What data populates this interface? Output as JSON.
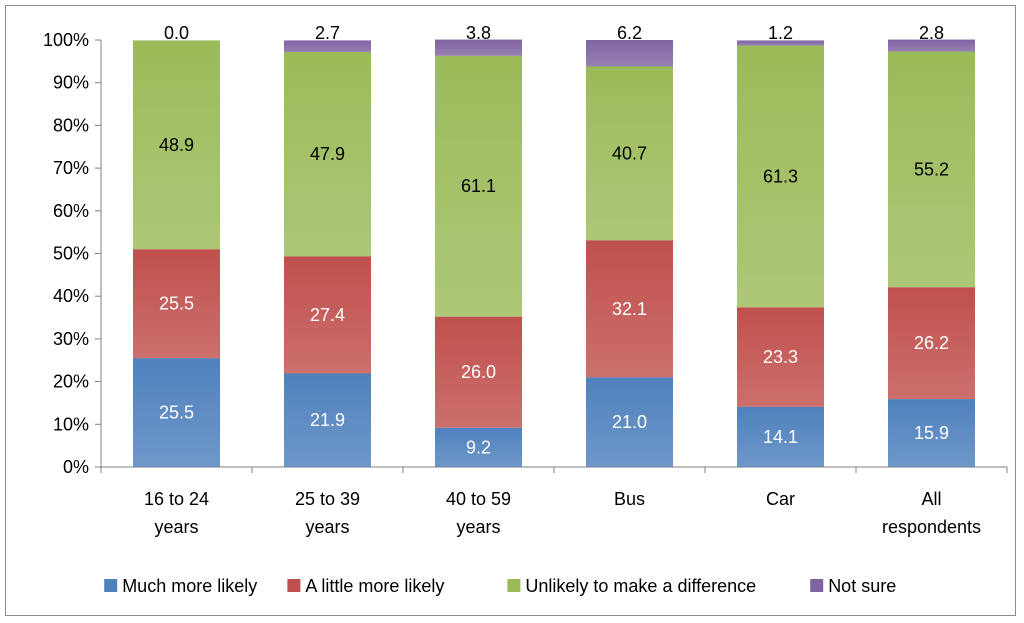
{
  "chart_data": {
    "type": "bar",
    "stacked": true,
    "percent": true,
    "title": "",
    "xlabel": "",
    "ylabel": "",
    "ylim": [
      0,
      100
    ],
    "yticks": [
      "0%",
      "10%",
      "20%",
      "30%",
      "40%",
      "50%",
      "60%",
      "70%",
      "80%",
      "90%",
      "100%"
    ],
    "categories": [
      [
        "16 to 24",
        "years"
      ],
      [
        "25 to 39",
        "years"
      ],
      [
        "40 to 59",
        "years"
      ],
      [
        "Bus"
      ],
      [
        "Car"
      ],
      [
        "All",
        "respondents"
      ]
    ],
    "series": [
      {
        "name": "Much more likely",
        "color": "#4f81bd",
        "values": [
          25.5,
          21.9,
          9.2,
          21.0,
          14.1,
          15.9
        ],
        "labels": [
          "25.5",
          "21.9",
          "9.2",
          "21.0",
          "14.1",
          "15.9"
        ]
      },
      {
        "name": "A little more likely",
        "color": "#c0504d",
        "values": [
          25.5,
          27.4,
          26.0,
          32.1,
          23.3,
          26.2
        ],
        "labels": [
          "25.5",
          "27.4",
          "26.0",
          "32.1",
          "23.3",
          "26.2"
        ]
      },
      {
        "name": "Unlikely to make a difference",
        "color": "#9bbb59",
        "values": [
          48.9,
          47.9,
          61.1,
          40.7,
          61.3,
          55.2
        ],
        "labels": [
          "48.9",
          "47.9",
          "61.1",
          "40.7",
          "61.3",
          "55.2"
        ]
      },
      {
        "name": "Not sure",
        "color": "#8064a2",
        "values": [
          0.0,
          2.7,
          3.8,
          6.2,
          1.2,
          2.8
        ],
        "labels": [
          "0.0",
          "2.7",
          "3.8",
          "6.2",
          "1.2",
          "2.8"
        ]
      }
    ],
    "legend": "bottom",
    "grid": false
  }
}
